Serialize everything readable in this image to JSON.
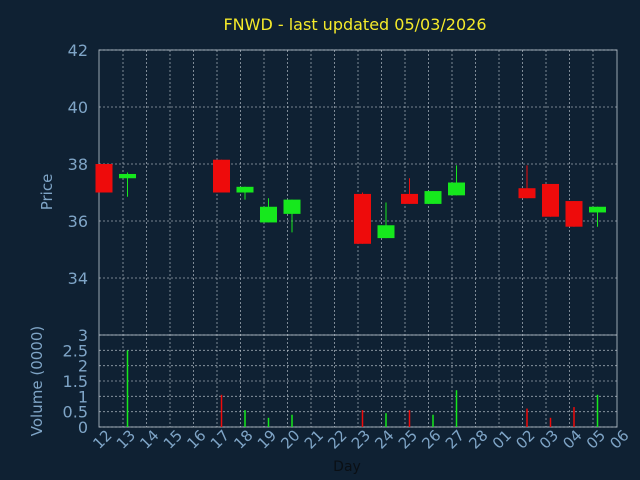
{
  "chart_data": [
    {
      "type": "candlestick",
      "title": "FNWD - last updated 05/03/2026",
      "ylabel": "Price",
      "ylim": [
        32,
        42
      ],
      "yticks": [
        34,
        36,
        38,
        40,
        42
      ],
      "grid": true,
      "x_tick_labels": [
        "12",
        "13",
        "14",
        "15",
        "16",
        "17",
        "18",
        "19",
        "20",
        "21",
        "22",
        "23",
        "24",
        "25",
        "26",
        "27",
        "28",
        "01",
        "02",
        "03",
        "04",
        "05",
        "06"
      ],
      "candles": [
        {
          "day": "12",
          "open": 38.0,
          "high": 38.0,
          "low": 37.0,
          "close": 37.0
        },
        {
          "day": "13",
          "open": 37.5,
          "high": 37.7,
          "low": 36.85,
          "close": 37.65
        },
        {
          "day": "17",
          "open": 38.15,
          "high": 38.15,
          "low": 37.0,
          "close": 37.0
        },
        {
          "day": "18",
          "open": 37.0,
          "high": 37.2,
          "low": 36.75,
          "close": 37.2
        },
        {
          "day": "19",
          "open": 35.95,
          "high": 36.8,
          "low": 35.95,
          "close": 36.5
        },
        {
          "day": "20",
          "open": 36.25,
          "high": 36.75,
          "low": 35.6,
          "close": 36.75
        },
        {
          "day": "23",
          "open": 36.95,
          "high": 37.0,
          "low": 35.2,
          "close": 35.2
        },
        {
          "day": "24",
          "open": 35.4,
          "high": 36.65,
          "low": 35.4,
          "close": 35.85
        },
        {
          "day": "25",
          "open": 36.95,
          "high": 37.5,
          "low": 36.6,
          "close": 36.6
        },
        {
          "day": "26",
          "open": 36.6,
          "high": 37.05,
          "low": 36.6,
          "close": 37.05
        },
        {
          "day": "27",
          "open": 36.9,
          "high": 37.95,
          "low": 36.9,
          "close": 37.35
        },
        {
          "day": "02",
          "open": 37.15,
          "high": 37.95,
          "low": 36.8,
          "close": 36.8
        },
        {
          "day": "03",
          "open": 37.3,
          "high": 37.3,
          "low": 36.15,
          "close": 36.15
        },
        {
          "day": "04",
          "open": 36.7,
          "high": 36.7,
          "low": 35.8,
          "close": 35.8
        },
        {
          "day": "05",
          "open": 36.3,
          "high": 36.5,
          "low": 35.8,
          "close": 36.5
        }
      ]
    },
    {
      "type": "bar",
      "ylabel": "Volume (0000)",
      "xlabel": "Day",
      "ylim": [
        0,
        3
      ],
      "yticks": [
        0,
        0.5,
        1,
        1.5,
        2,
        2.5,
        3
      ],
      "grid": true,
      "categories": [
        "12",
        "13",
        "17",
        "18",
        "19",
        "20",
        "23",
        "24",
        "25",
        "26",
        "27",
        "02",
        "03",
        "04",
        "05"
      ],
      "values": [
        0.0,
        2.5,
        1.05,
        0.55,
        0.3,
        0.4,
        0.55,
        0.45,
        0.55,
        0.4,
        1.2,
        0.6,
        0.3,
        0.65,
        1.05
      ],
      "direction": [
        "down",
        "up",
        "down",
        "up",
        "up",
        "up",
        "down",
        "up",
        "down",
        "up",
        "up",
        "down",
        "down",
        "down",
        "up"
      ]
    }
  ],
  "colors": {
    "background": "#0f2133",
    "plot_border": "#9aa6b2",
    "grid": "#c8d0d8",
    "axis_text": "#7fa5c7",
    "title": "#f5ea2a",
    "up": "#16e81d",
    "down": "#ee0b0b"
  }
}
